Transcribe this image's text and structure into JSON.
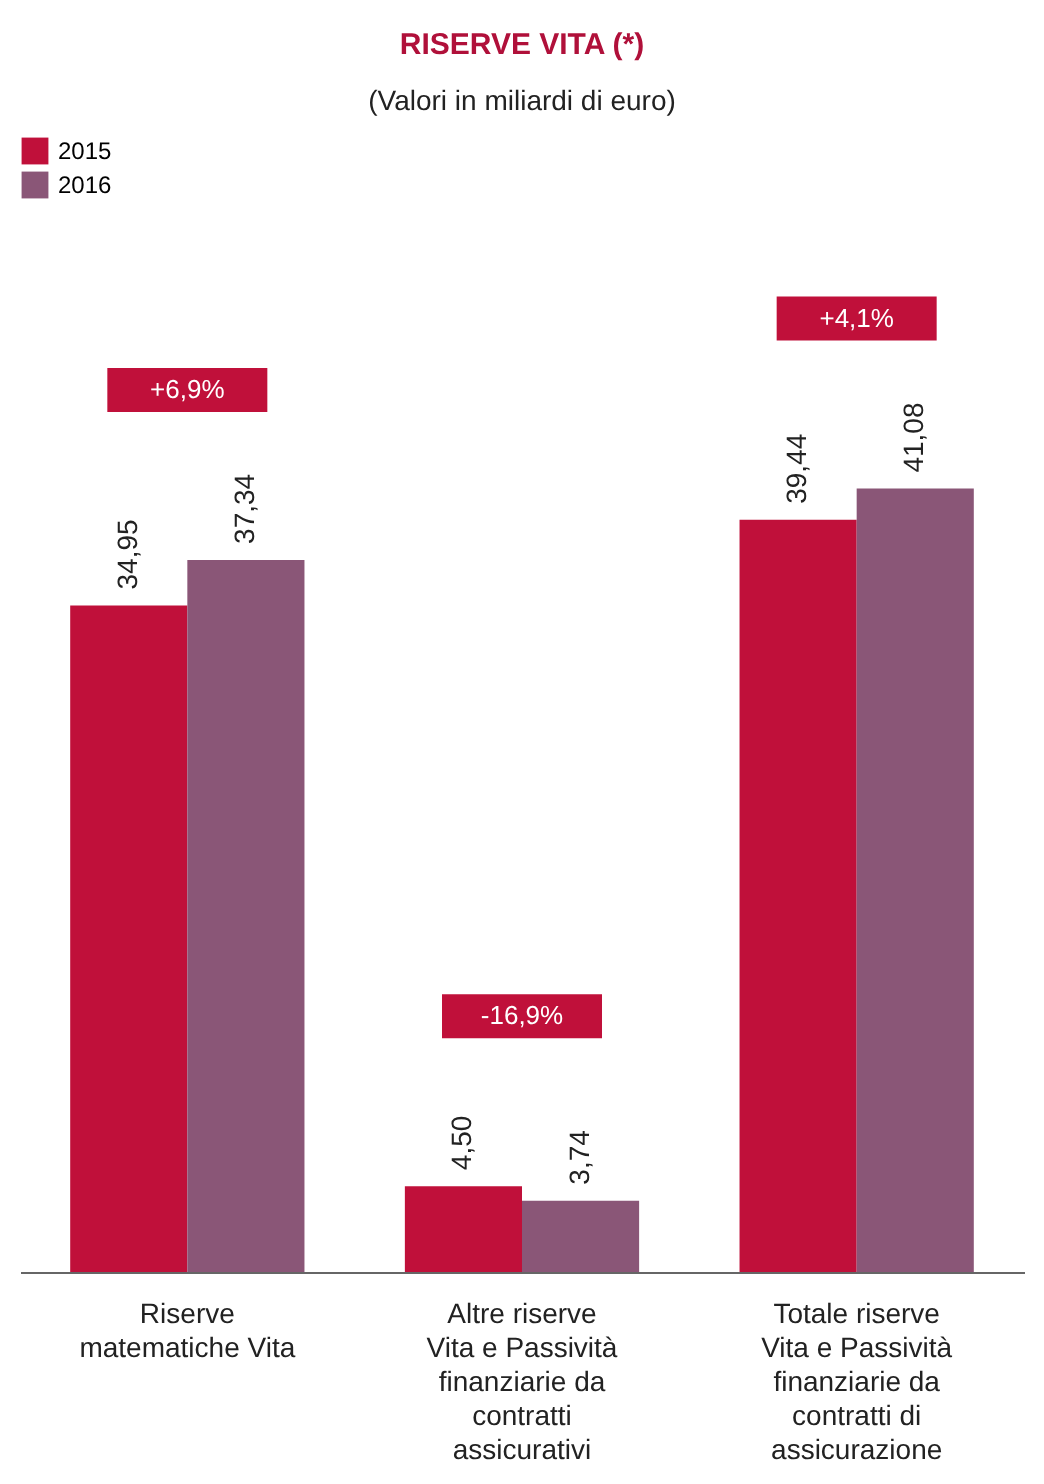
{
  "chart_data": {
    "type": "bar",
    "title": "RISERVE VITA (*)",
    "subtitle": "(Valori in miliardi di euro)",
    "categories": [
      "Riserve matematiche Vita",
      "Altre riserve Vita e Passività finanziarie da contratti assicurativi",
      "Totale riserve Vita e Passività finanziarie da contratti di assicurazione"
    ],
    "series": [
      {
        "name": "2015",
        "color": "#c0103a",
        "values": [
          34.95,
          4.5,
          39.44
        ],
        "value_labels": [
          "34,95",
          "4,50",
          "39,44"
        ]
      },
      {
        "name": "2016",
        "color": "#8a5677",
        "values": [
          37.34,
          3.74,
          41.08
        ],
        "value_labels": [
          "37,34",
          "3,74",
          "41,08"
        ]
      }
    ],
    "annotations": [
      "+6,9%",
      "-16,9%",
      "+4,1%"
    ],
    "legend": "top left"
  }
}
